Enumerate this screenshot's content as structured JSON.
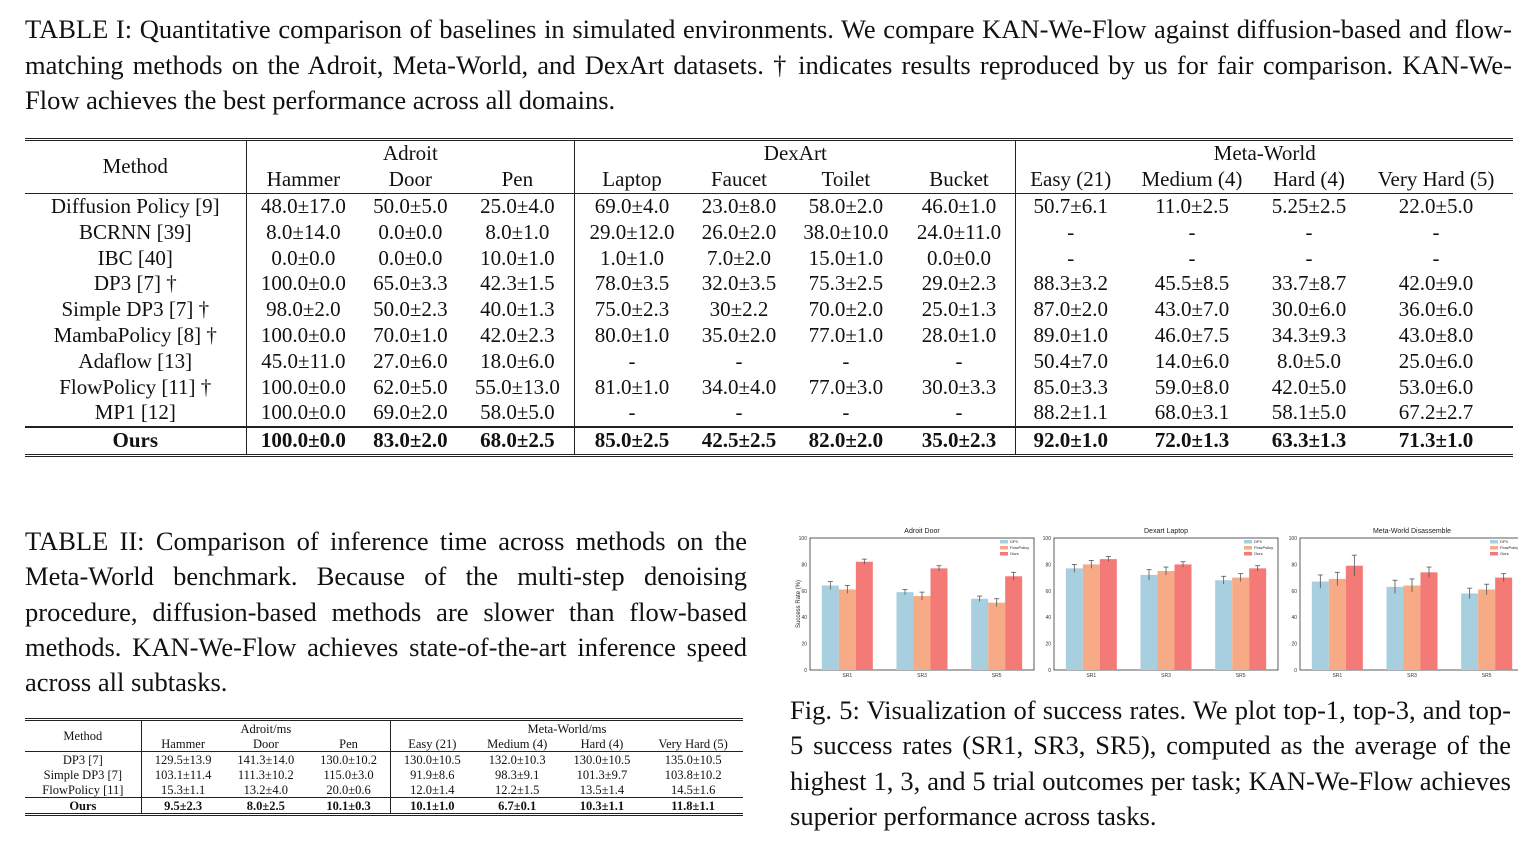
{
  "table1": {
    "caption": "TABLE I: Quantitative comparison of baselines in simulated environments. We compare KAN-We-Flow against diffusion-based and flow-matching methods on the Adroit, Meta-World, and DexArt datasets. † indicates results reproduced by us for fair comparison. KAN-We-Flow achieves the best performance across all domains.",
    "method_header": "Method",
    "groups": [
      "Adroit",
      "DexArt",
      "Meta-World"
    ],
    "columns": [
      "Hammer",
      "Door",
      "Pen",
      "Laptop",
      "Faucet",
      "Toilet",
      "Bucket",
      "Easy (21)",
      "Medium (4)",
      "Hard (4)",
      "Very Hard (5)"
    ],
    "rows": [
      {
        "method": "Diffusion Policy [9]",
        "values": [
          "48.0±17.0",
          "50.0±5.0",
          "25.0±4.0",
          "69.0±4.0",
          "23.0±8.0",
          "58.0±2.0",
          "46.0±1.0",
          "50.7±6.1",
          "11.0±2.5",
          "5.25±2.5",
          "22.0±5.0"
        ]
      },
      {
        "method": "BCRNN [39]",
        "values": [
          "8.0±14.0",
          "0.0±0.0",
          "8.0±1.0",
          "29.0±12.0",
          "26.0±2.0",
          "38.0±10.0",
          "24.0±11.0",
          "-",
          "-",
          "-",
          "-"
        ]
      },
      {
        "method": "IBC [40]",
        "values": [
          "0.0±0.0",
          "0.0±0.0",
          "10.0±1.0",
          "1.0±1.0",
          "7.0±2.0",
          "15.0±1.0",
          "0.0±0.0",
          "-",
          "-",
          "-",
          "-"
        ]
      },
      {
        "method": "DP3 [7] †",
        "values": [
          "100.0±0.0",
          "65.0±3.3",
          "42.3±1.5",
          "78.0±3.5",
          "32.0±3.5",
          "75.3±2.5",
          "29.0±2.3",
          "88.3±3.2",
          "45.5±8.5",
          "33.7±8.7",
          "42.0±9.0"
        ]
      },
      {
        "method": "Simple DP3 [7] †",
        "values": [
          "98.0±2.0",
          "50.0±2.3",
          "40.0±1.3",
          "75.0±2.3",
          "30±2.2",
          "70.0±2.0",
          "25.0±1.3",
          "87.0±2.0",
          "43.0±7.0",
          "30.0±6.0",
          "36.0±6.0"
        ]
      },
      {
        "method": "MambaPolicy [8] †",
        "values": [
          "100.0±0.0",
          "70.0±1.0",
          "42.0±2.3",
          "80.0±1.0",
          "35.0±2.0",
          "77.0±1.0",
          "28.0±1.0",
          "89.0±1.0",
          "46.0±7.5",
          "34.3±9.3",
          "43.0±8.0"
        ]
      },
      {
        "method": "Adaflow [13]",
        "values": [
          "45.0±11.0",
          "27.0±6.0",
          "18.0±6.0",
          "-",
          "-",
          "-",
          "-",
          "50.4±7.0",
          "14.0±6.0",
          "8.0±5.0",
          "25.0±6.0"
        ]
      },
      {
        "method": "FlowPolicy [11] †",
        "values": [
          "100.0±0.0",
          "62.0±5.0",
          "55.0±13.0",
          "81.0±1.0",
          "34.0±4.0",
          "77.0±3.0",
          "30.0±3.3",
          "85.0±3.3",
          "59.0±8.0",
          "42.0±5.0",
          "53.0±6.0"
        ]
      },
      {
        "method": "MP1 [12]",
        "values": [
          "100.0±0.0",
          "69.0±2.0",
          "58.0±5.0",
          "-",
          "-",
          "-",
          "-",
          "88.2±1.1",
          "68.0±3.1",
          "58.1±5.0",
          "67.2±2.7"
        ]
      },
      {
        "method": "Ours",
        "values": [
          "100.0±0.0",
          "83.0±2.0",
          "68.0±2.5",
          "85.0±2.5",
          "42.5±2.5",
          "82.0±2.0",
          "35.0±2.3",
          "92.0±1.0",
          "72.0±1.3",
          "63.3±1.3",
          "71.3±1.0"
        ]
      }
    ]
  },
  "table2": {
    "caption": "TABLE II: Comparison of inference time across methods on the Meta-World benchmark. Because of the multi-step denoising procedure, diffusion-based methods are slower than flow-based methods. KAN-We-Flow achieves state-of-the-art inference speed across all subtasks.",
    "method_header": "Method",
    "groups": [
      "Adroit/ms",
      "Meta-World/ms"
    ],
    "columns": [
      "Hammer",
      "Door",
      "Pen",
      "Easy (21)",
      "Medium (4)",
      "Hard (4)",
      "Very Hard (5)"
    ],
    "rows": [
      {
        "method": "DP3 [7]",
        "values": [
          "129.5±13.9",
          "141.3±14.0",
          "130.0±10.2",
          "130.0±10.5",
          "132.0±10.3",
          "130.0±10.5",
          "135.0±10.5"
        ]
      },
      {
        "method": "Simple DP3 [7]",
        "values": [
          "103.1±11.4",
          "111.3±10.2",
          "115.0±3.0",
          "91.9±8.6",
          "98.3±9.1",
          "101.3±9.7",
          "103.8±10.2"
        ]
      },
      {
        "method": "FlowPolicy [11]",
        "values": [
          "15.3±1.1",
          "13.2±4.0",
          "20.0±0.6",
          "12.0±1.4",
          "12.2±1.5",
          "13.5±1.4",
          "14.5±1.6"
        ]
      },
      {
        "method": "Ours",
        "values": [
          "9.5±2.3",
          "8.0±2.5",
          "10.1±0.3",
          "10.1±1.0",
          "6.7±0.1",
          "10.3±1.1",
          "11.8±1.1"
        ]
      }
    ]
  },
  "figure5": {
    "caption": "Fig. 5: Visualization of success rates. We plot top-1, top-3, and top-5 success rates (SR1, SR3, SR5), computed as the average of the highest 1, 3, and 5 trial outcomes per task; KAN-We-Flow achieves superior performance across tasks.",
    "colors": {
      "DP3": "#a8cfe0",
      "FlowPolicy": "#f6ab86",
      "Ours": "#f47a78"
    },
    "chart_data": [
      {
        "type": "bar",
        "title": "Adroit Door",
        "ylabel": "Success Rate (%)",
        "ylim": [
          0,
          100
        ],
        "yticks": [
          "0",
          "20",
          "40",
          "60",
          "80",
          "100"
        ],
        "categories": [
          "SR1",
          "SR3",
          "SR5"
        ],
        "legend_position": "top-right",
        "series": [
          {
            "name": "DP3",
            "values": [
              64,
              59,
              54
            ],
            "errors": [
              3,
              2,
              2
            ]
          },
          {
            "name": "FlowPolicy",
            "values": [
              61,
              56,
              51
            ],
            "errors": [
              3,
              3,
              3
            ]
          },
          {
            "name": "Ours",
            "values": [
              82,
              77,
              71
            ],
            "errors": [
              2,
              2,
              3
            ]
          }
        ]
      },
      {
        "type": "bar",
        "title": "Dexart Laptop",
        "ylabel": "",
        "ylim": [
          0,
          100
        ],
        "yticks": [
          "0",
          "20",
          "40",
          "60",
          "80",
          "100"
        ],
        "categories": [
          "SR1",
          "SR3",
          "SR5"
        ],
        "legend_position": "top-right",
        "series": [
          {
            "name": "DP3",
            "values": [
              77,
              72,
              68
            ],
            "errors": [
              3,
              4,
              3
            ]
          },
          {
            "name": "FlowPolicy",
            "values": [
              80,
              75,
              70
            ],
            "errors": [
              3,
              3,
              3
            ]
          },
          {
            "name": "Ours",
            "values": [
              84,
              80,
              77
            ],
            "errors": [
              2,
              2,
              2
            ]
          }
        ]
      },
      {
        "type": "bar",
        "title": "Meta-World Disassemble",
        "ylabel": "",
        "ylim": [
          0,
          100
        ],
        "yticks": [
          "0",
          "20",
          "40",
          "60",
          "80",
          "100"
        ],
        "categories": [
          "SR1",
          "SR3",
          "SR5"
        ],
        "legend_position": "top-right",
        "series": [
          {
            "name": "DP3",
            "values": [
              67,
              63,
              58
            ],
            "errors": [
              5,
              5,
              4
            ]
          },
          {
            "name": "FlowPolicy",
            "values": [
              69,
              64,
              61
            ],
            "errors": [
              5,
              5,
              4
            ]
          },
          {
            "name": "Ours",
            "values": [
              79,
              74,
              70
            ],
            "errors": [
              8,
              4,
              3
            ]
          }
        ]
      }
    ]
  }
}
